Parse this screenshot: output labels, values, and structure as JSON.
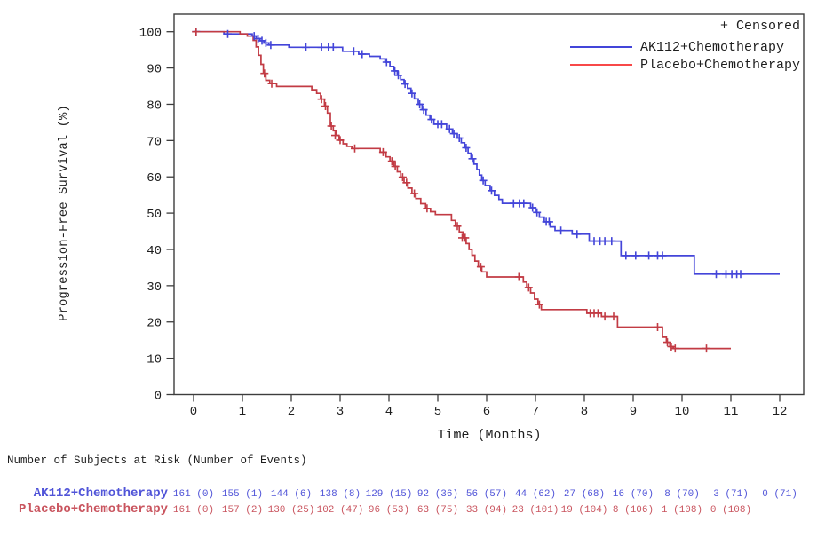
{
  "page": {
    "background": "#ffffff",
    "frame_color": "#3d3d3d",
    "text_color": "#1e1e1e"
  },
  "legend": {
    "censored_label": "+ Censored",
    "entries": [
      {
        "label": "AK112+Chemotherapy",
        "color": "#4345d9"
      },
      {
        "label": "Placebo+Chemotherapy",
        "color": "#f84848"
      }
    ]
  },
  "chart_data": {
    "type": "line",
    "variant": "kaplan_meier_step_curve",
    "title": "",
    "xlabel": "Time (Months)",
    "ylabel": "Progression-Free Survival (%)",
    "xlim": [
      0,
      12
    ],
    "ylim": [
      0,
      100
    ],
    "xticks": [
      0,
      1,
      2,
      3,
      4,
      5,
      6,
      7,
      8,
      9,
      10,
      11,
      12
    ],
    "yticks": [
      0,
      10,
      20,
      30,
      40,
      50,
      60,
      70,
      80,
      90,
      100
    ],
    "grid": false,
    "legend_position": "top-right",
    "series": [
      {
        "name": "AK112+Chemotherapy",
        "color": "#4345d9",
        "end_time": 12.0,
        "steps": [
          [
            0,
            100
          ],
          [
            0.62,
            99.4
          ],
          [
            1.2,
            98.8
          ],
          [
            1.28,
            98.1
          ],
          [
            1.36,
            97.5
          ],
          [
            1.44,
            96.9
          ],
          [
            1.54,
            96.3
          ],
          [
            1.95,
            95.7
          ],
          [
            3.05,
            94.6
          ],
          [
            3.38,
            93.8
          ],
          [
            3.6,
            93.2
          ],
          [
            3.82,
            92.5
          ],
          [
            3.92,
            91.6
          ],
          [
            4.02,
            90.4
          ],
          [
            4.1,
            89.2
          ],
          [
            4.17,
            88.0
          ],
          [
            4.24,
            86.8
          ],
          [
            4.31,
            85.6
          ],
          [
            4.38,
            84.4
          ],
          [
            4.45,
            83.0
          ],
          [
            4.52,
            81.5
          ],
          [
            4.6,
            80.0
          ],
          [
            4.68,
            78.5
          ],
          [
            4.76,
            77.0
          ],
          [
            4.84,
            75.8
          ],
          [
            4.92,
            74.5
          ],
          [
            5.18,
            73.2
          ],
          [
            5.3,
            71.9
          ],
          [
            5.4,
            70.7
          ],
          [
            5.48,
            69.4
          ],
          [
            5.55,
            68.0
          ],
          [
            5.62,
            66.5
          ],
          [
            5.68,
            65.0
          ],
          [
            5.74,
            63.5
          ],
          [
            5.8,
            62.0
          ],
          [
            5.85,
            60.5
          ],
          [
            5.9,
            59.0
          ],
          [
            5.97,
            57.6
          ],
          [
            6.07,
            56.2
          ],
          [
            6.16,
            54.9
          ],
          [
            6.25,
            53.8
          ],
          [
            6.32,
            52.7
          ],
          [
            6.9,
            51.5
          ],
          [
            7.0,
            50.2
          ],
          [
            7.08,
            48.9
          ],
          [
            7.18,
            47.6
          ],
          [
            7.3,
            46.2
          ],
          [
            7.4,
            45.2
          ],
          [
            7.75,
            44.2
          ],
          [
            8.1,
            42.3
          ],
          [
            8.75,
            38.3
          ],
          [
            10.25,
            33.2
          ]
        ],
        "censored": [
          [
            0.05,
            100
          ],
          [
            0.7,
            99.4
          ],
          [
            1.24,
            98.8
          ],
          [
            1.32,
            98.1
          ],
          [
            1.4,
            97.5
          ],
          [
            1.48,
            96.9
          ],
          [
            1.58,
            96.3
          ],
          [
            2.3,
            95.7
          ],
          [
            2.62,
            95.7
          ],
          [
            2.76,
            95.7
          ],
          [
            2.86,
            95.7
          ],
          [
            3.28,
            94.6
          ],
          [
            3.45,
            93.8
          ],
          [
            3.95,
            91.6
          ],
          [
            4.12,
            89.2
          ],
          [
            4.19,
            88.0
          ],
          [
            4.33,
            85.6
          ],
          [
            4.47,
            83.0
          ],
          [
            4.63,
            80.0
          ],
          [
            4.71,
            78.5
          ],
          [
            4.87,
            75.8
          ],
          [
            5.0,
            74.5
          ],
          [
            5.08,
            74.5
          ],
          [
            5.24,
            73.2
          ],
          [
            5.33,
            71.9
          ],
          [
            5.44,
            70.7
          ],
          [
            5.58,
            68.0
          ],
          [
            5.71,
            65.0
          ],
          [
            5.93,
            59.0
          ],
          [
            6.1,
            56.2
          ],
          [
            6.55,
            52.7
          ],
          [
            6.67,
            52.7
          ],
          [
            6.76,
            52.7
          ],
          [
            6.94,
            51.5
          ],
          [
            7.03,
            50.2
          ],
          [
            7.22,
            47.6
          ],
          [
            7.28,
            47.6
          ],
          [
            7.52,
            45.2
          ],
          [
            7.85,
            44.2
          ],
          [
            8.2,
            42.3
          ],
          [
            8.32,
            42.3
          ],
          [
            8.42,
            42.3
          ],
          [
            8.56,
            42.3
          ],
          [
            8.85,
            38.3
          ],
          [
            9.05,
            38.3
          ],
          [
            9.32,
            38.3
          ],
          [
            9.5,
            38.3
          ],
          [
            9.6,
            38.3
          ],
          [
            10.7,
            33.2
          ],
          [
            10.9,
            33.2
          ],
          [
            11.02,
            33.2
          ],
          [
            11.12,
            33.2
          ],
          [
            11.2,
            33.2
          ]
        ]
      },
      {
        "name": "Placebo+Chemotherapy",
        "color": "#c23b44",
        "end_time": 11.0,
        "steps": [
          [
            0,
            100
          ],
          [
            0.95,
            99.4
          ],
          [
            1.1,
            98.8
          ],
          [
            1.22,
            97.6
          ],
          [
            1.28,
            95.8
          ],
          [
            1.33,
            93.5
          ],
          [
            1.38,
            91.0
          ],
          [
            1.43,
            88.5
          ],
          [
            1.48,
            86.6
          ],
          [
            1.56,
            85.7
          ],
          [
            1.7,
            84.9
          ],
          [
            2.42,
            84.0
          ],
          [
            2.52,
            83.0
          ],
          [
            2.6,
            81.4
          ],
          [
            2.68,
            79.5
          ],
          [
            2.74,
            77.6
          ],
          [
            2.8,
            74.0
          ],
          [
            2.86,
            72.7
          ],
          [
            2.92,
            71.4
          ],
          [
            2.98,
            70.1
          ],
          [
            3.06,
            69.1
          ],
          [
            3.14,
            68.4
          ],
          [
            3.24,
            67.8
          ],
          [
            3.82,
            66.8
          ],
          [
            3.94,
            65.5
          ],
          [
            4.02,
            64.3
          ],
          [
            4.1,
            62.9
          ],
          [
            4.17,
            61.4
          ],
          [
            4.24,
            59.9
          ],
          [
            4.31,
            58.4
          ],
          [
            4.39,
            56.9
          ],
          [
            4.47,
            55.4
          ],
          [
            4.55,
            54.0
          ],
          [
            4.65,
            52.6
          ],
          [
            4.75,
            51.3
          ],
          [
            4.85,
            50.4
          ],
          [
            4.95,
            49.6
          ],
          [
            5.28,
            48.0
          ],
          [
            5.36,
            46.4
          ],
          [
            5.44,
            44.8
          ],
          [
            5.52,
            43.2
          ],
          [
            5.58,
            41.6
          ],
          [
            5.64,
            40.0
          ],
          [
            5.7,
            38.4
          ],
          [
            5.76,
            36.8
          ],
          [
            5.83,
            35.2
          ],
          [
            5.9,
            33.8
          ],
          [
            6.0,
            32.4
          ],
          [
            6.75,
            31.0
          ],
          [
            6.82,
            29.5
          ],
          [
            6.9,
            28.0
          ],
          [
            6.98,
            26.3
          ],
          [
            7.05,
            24.8
          ],
          [
            7.12,
            23.4
          ],
          [
            8.05,
            22.4
          ],
          [
            8.35,
            21.5
          ],
          [
            8.68,
            18.6
          ],
          [
            9.6,
            15.8
          ],
          [
            9.68,
            14.4
          ],
          [
            9.75,
            13.2
          ],
          [
            9.82,
            12.7
          ]
        ],
        "censored": [
          [
            0.05,
            100
          ],
          [
            1.45,
            88.5
          ],
          [
            1.6,
            85.7
          ],
          [
            2.62,
            81.4
          ],
          [
            2.7,
            79.5
          ],
          [
            2.82,
            74.0
          ],
          [
            2.9,
            71.4
          ],
          [
            3.0,
            70.1
          ],
          [
            3.3,
            67.8
          ],
          [
            3.88,
            66.8
          ],
          [
            4.06,
            64.3
          ],
          [
            4.13,
            62.9
          ],
          [
            4.28,
            59.9
          ],
          [
            4.36,
            58.4
          ],
          [
            4.52,
            55.4
          ],
          [
            4.78,
            51.3
          ],
          [
            5.4,
            46.4
          ],
          [
            5.5,
            43.2
          ],
          [
            5.56,
            43.2
          ],
          [
            5.88,
            35.2
          ],
          [
            6.66,
            32.4
          ],
          [
            6.86,
            29.5
          ],
          [
            7.08,
            24.8
          ],
          [
            8.12,
            22.4
          ],
          [
            8.2,
            22.4
          ],
          [
            8.28,
            22.4
          ],
          [
            8.42,
            21.5
          ],
          [
            8.6,
            21.5
          ],
          [
            9.5,
            18.6
          ],
          [
            9.7,
            14.4
          ],
          [
            9.78,
            13.2
          ],
          [
            9.86,
            12.7
          ],
          [
            10.5,
            12.7
          ]
        ]
      }
    ]
  },
  "risk_table": {
    "title": "Number of Subjects at Risk (Number of Events)",
    "rows": [
      {
        "label": "AK112+Chemotherapy",
        "color": "#5054d8",
        "values": [
          "161 (0)",
          "155 (1)",
          "144 (6)",
          "138 (8)",
          "129 (15)",
          "92 (36)",
          "56 (57)",
          "44 (62)",
          "27 (68)",
          "16 (70)",
          "8 (70)",
          "3 (71)",
          "0 (71)"
        ]
      },
      {
        "label": "Placebo+Chemotherapy",
        "color": "#c9545e",
        "values": [
          "161 (0)",
          "157 (2)",
          "130 (25)",
          "102 (47)",
          "96 (53)",
          "63 (75)",
          "33 (94)",
          "23 (101)",
          "19 (104)",
          "8 (106)",
          "1 (108)",
          "0 (108)"
        ]
      }
    ]
  }
}
